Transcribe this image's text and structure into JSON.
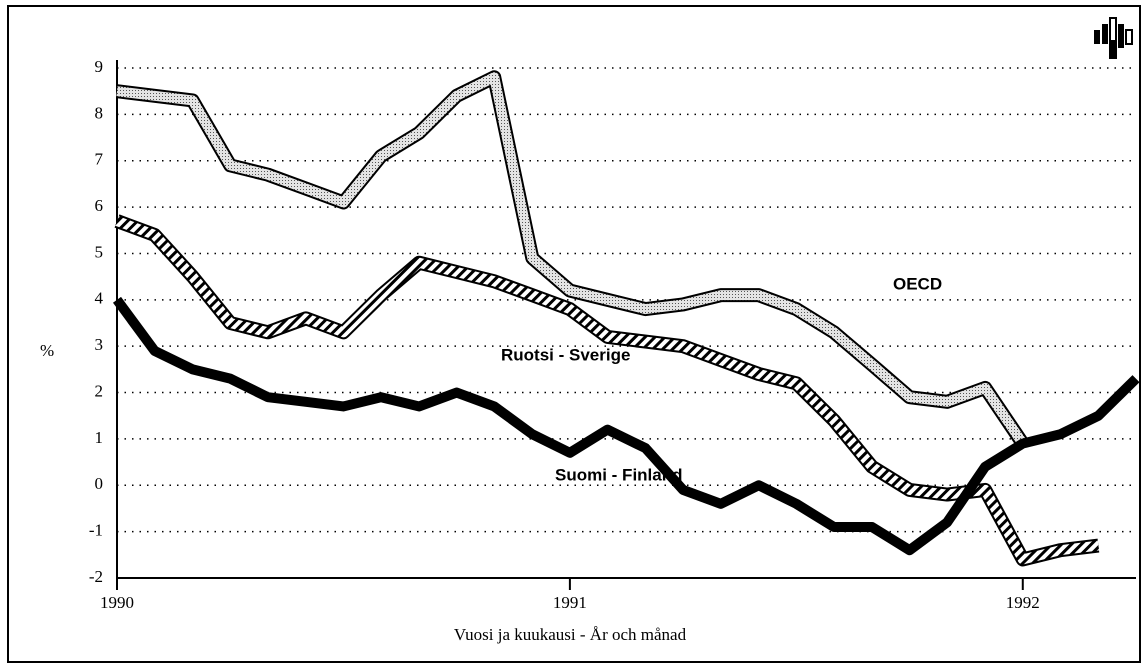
{
  "chart_data": {
    "type": "line",
    "ylabel": "%",
    "xlabel": "Vuosi ja kuukausi - År och månad",
    "xlim": [
      1990,
      1992.25
    ],
    "xticks": [
      1990,
      1991,
      1992
    ],
    "ylim": [
      -2,
      9
    ],
    "yticks": [
      -2,
      -1,
      0,
      1,
      2,
      3,
      4,
      5,
      6,
      7,
      8,
      9
    ],
    "grid": true,
    "series": [
      {
        "name": "OECD",
        "color": "#bdbdbd",
        "pattern": "dots",
        "x": [
          1990,
          1990.083,
          1990.167,
          1990.25,
          1990.333,
          1990.417,
          1990.5,
          1990.583,
          1990.667,
          1990.75,
          1990.833,
          1990.917,
          1991,
          1991.083,
          1991.167,
          1991.25,
          1991.333,
          1991.417,
          1991.5,
          1991.583,
          1991.667,
          1991.75,
          1991.833,
          1991.917,
          1992
        ],
        "values": [
          8.5,
          8.4,
          8.3,
          6.9,
          6.7,
          6.4,
          6.1,
          7.1,
          7.6,
          8.4,
          8.8,
          4.9,
          4.2,
          4.0,
          3.8,
          3.9,
          4.1,
          4.1,
          3.8,
          3.3,
          2.6,
          1.9,
          1.8,
          2.1,
          0.9
        ]
      },
      {
        "name": "Ruotsi - Sverige",
        "color": "#ffffff",
        "pattern": "hatch",
        "x": [
          1990,
          1990.083,
          1990.167,
          1990.25,
          1990.333,
          1990.417,
          1990.5,
          1990.583,
          1990.667,
          1990.75,
          1990.833,
          1990.917,
          1991,
          1991.083,
          1991.167,
          1991.25,
          1991.333,
          1991.417,
          1991.5,
          1991.583,
          1991.667,
          1991.75,
          1991.833,
          1991.917,
          1992,
          1992.083,
          1992.167
        ],
        "values": [
          5.7,
          5.4,
          4.5,
          3.5,
          3.3,
          3.6,
          3.3,
          4.1,
          4.8,
          4.6,
          4.4,
          4.1,
          3.8,
          3.2,
          3.1,
          3.0,
          2.7,
          2.4,
          2.2,
          1.4,
          0.4,
          -0.1,
          -0.2,
          -0.1,
          -1.6,
          -1.4,
          -1.3
        ]
      },
      {
        "name": "Suomi - Finland",
        "color": "#000000",
        "pattern": "solid",
        "x": [
          1990,
          1990.083,
          1990.167,
          1990.25,
          1990.333,
          1990.417,
          1990.5,
          1990.583,
          1990.667,
          1990.75,
          1990.833,
          1990.917,
          1991,
          1991.083,
          1991.167,
          1991.25,
          1991.333,
          1991.417,
          1991.5,
          1991.583,
          1991.667,
          1991.75,
          1991.833,
          1991.917,
          1992,
          1992.083,
          1992.167,
          1992.25
        ],
        "values": [
          4.0,
          2.9,
          2.5,
          2.3,
          1.9,
          1.8,
          1.7,
          1.9,
          1.7,
          2.0,
          1.7,
          1.1,
          0.7,
          1.2,
          0.8,
          -0.1,
          -0.4,
          0.0,
          -0.4,
          -0.9,
          -0.9,
          -1.4,
          -0.8,
          0.4,
          0.9,
          1.1,
          1.5,
          2.3
        ]
      }
    ]
  }
}
